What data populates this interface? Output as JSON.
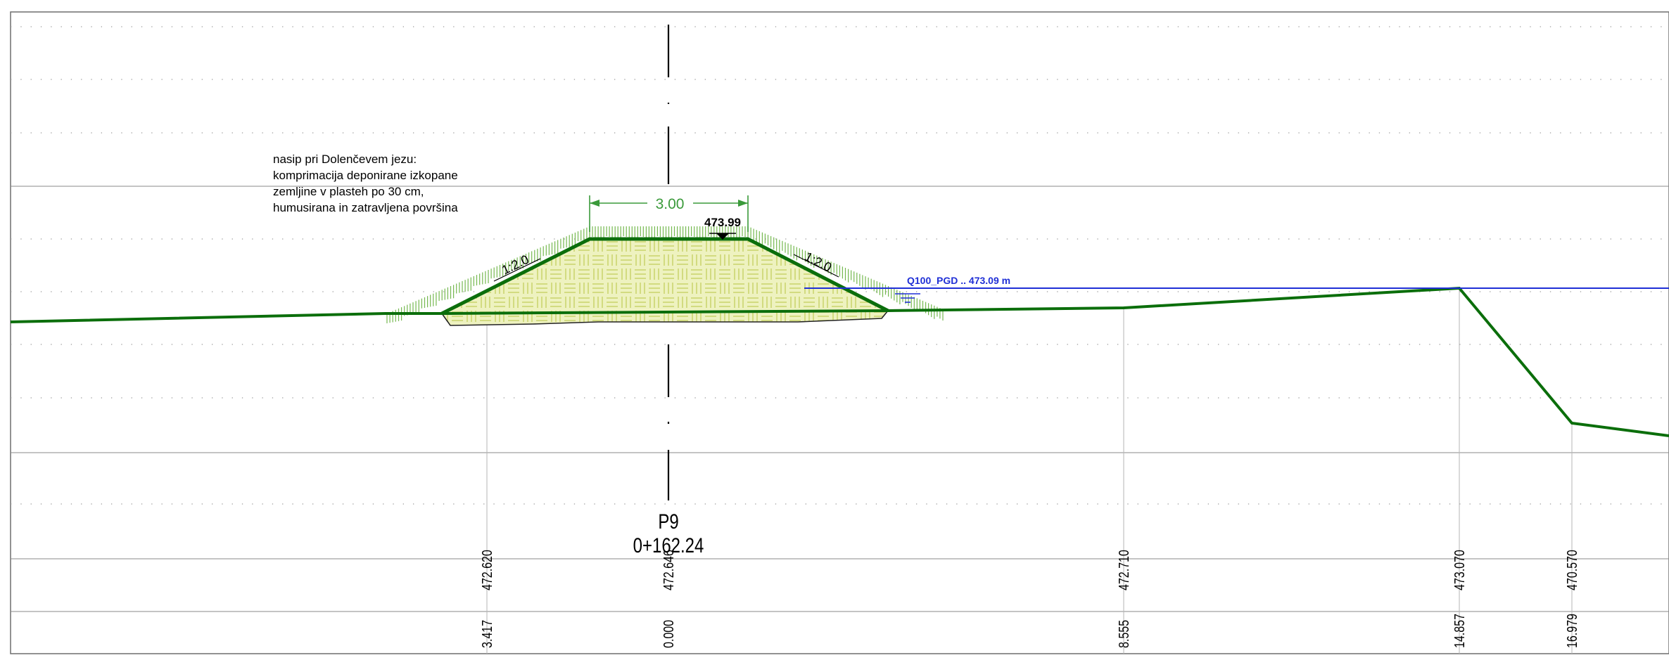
{
  "note": {
    "lines": [
      "nasip pri Dolenčevem jezu:",
      "komprimacija deponirane izkopane",
      "zemljine v plasteh po 30 cm,",
      "humusirana in zatravljena površina"
    ]
  },
  "profile": {
    "name": "P9",
    "chainage": "0+162.24"
  },
  "crest": {
    "width_label": "3.00",
    "elevation_label": "473.99"
  },
  "slopes": {
    "left_label": "1:2.0",
    "right_label": "1:2.0"
  },
  "water_level": {
    "label": "Q100_PGD .. 473.09 m"
  },
  "colors": {
    "terrain": "#0b6e0b",
    "embankment_fill": "#e9efb0",
    "embankment_hatch": "#c8d46a",
    "grass": "#7cbf5a",
    "water": "#1f2fd6",
    "dimension": "#3a9a3a",
    "frame": "#808080"
  },
  "stations": [
    {
      "distance": "3.417",
      "elevation": "472.620"
    },
    {
      "distance": "0.000",
      "elevation": "472.646"
    },
    {
      "distance": "8.555",
      "elevation": "472.710"
    },
    {
      "distance": "14.857",
      "elevation": "473.070"
    },
    {
      "distance": "16.979",
      "elevation": "470.570"
    }
  ]
}
